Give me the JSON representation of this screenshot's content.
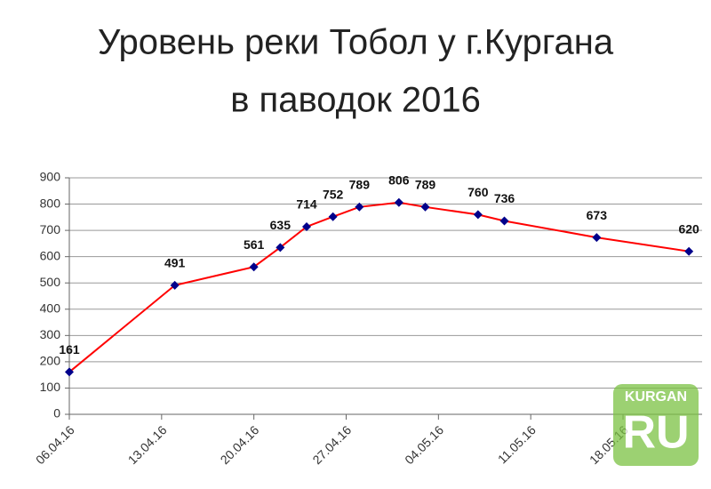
{
  "chart_data": {
    "type": "line",
    "title": [
      "Уровень реки Тобол у г.Кургана",
      "в паводок 2016"
    ],
    "x": [
      "06.04.16",
      "14.04.16",
      "20.04.16",
      "22.04.16",
      "24.04.16",
      "26.04.16",
      "28.04.16",
      "01.05.16",
      "03.05.16",
      "07.05.16",
      "09.05.16",
      "16.05.16",
      "23.05.16"
    ],
    "series": [
      {
        "color": "#ff0000",
        "marker_color": "#00008b",
        "values": [
          161,
          491,
          561,
          635,
          714,
          752,
          789,
          806,
          789,
          760,
          736,
          673,
          620
        ]
      }
    ],
    "xlim": [
      "06.04.16",
      "24.05.16"
    ],
    "xticks": [
      "06.04.16",
      "13.04.16",
      "20.04.16",
      "27.04.16",
      "04.05.16",
      "11.05.16",
      "18.05.16"
    ],
    "ylim": [
      0,
      900
    ],
    "yticks": [
      0,
      100,
      200,
      300,
      400,
      500,
      600,
      700,
      800,
      900
    ],
    "grid": true,
    "watermark": [
      "KURGAN",
      "RU"
    ]
  }
}
